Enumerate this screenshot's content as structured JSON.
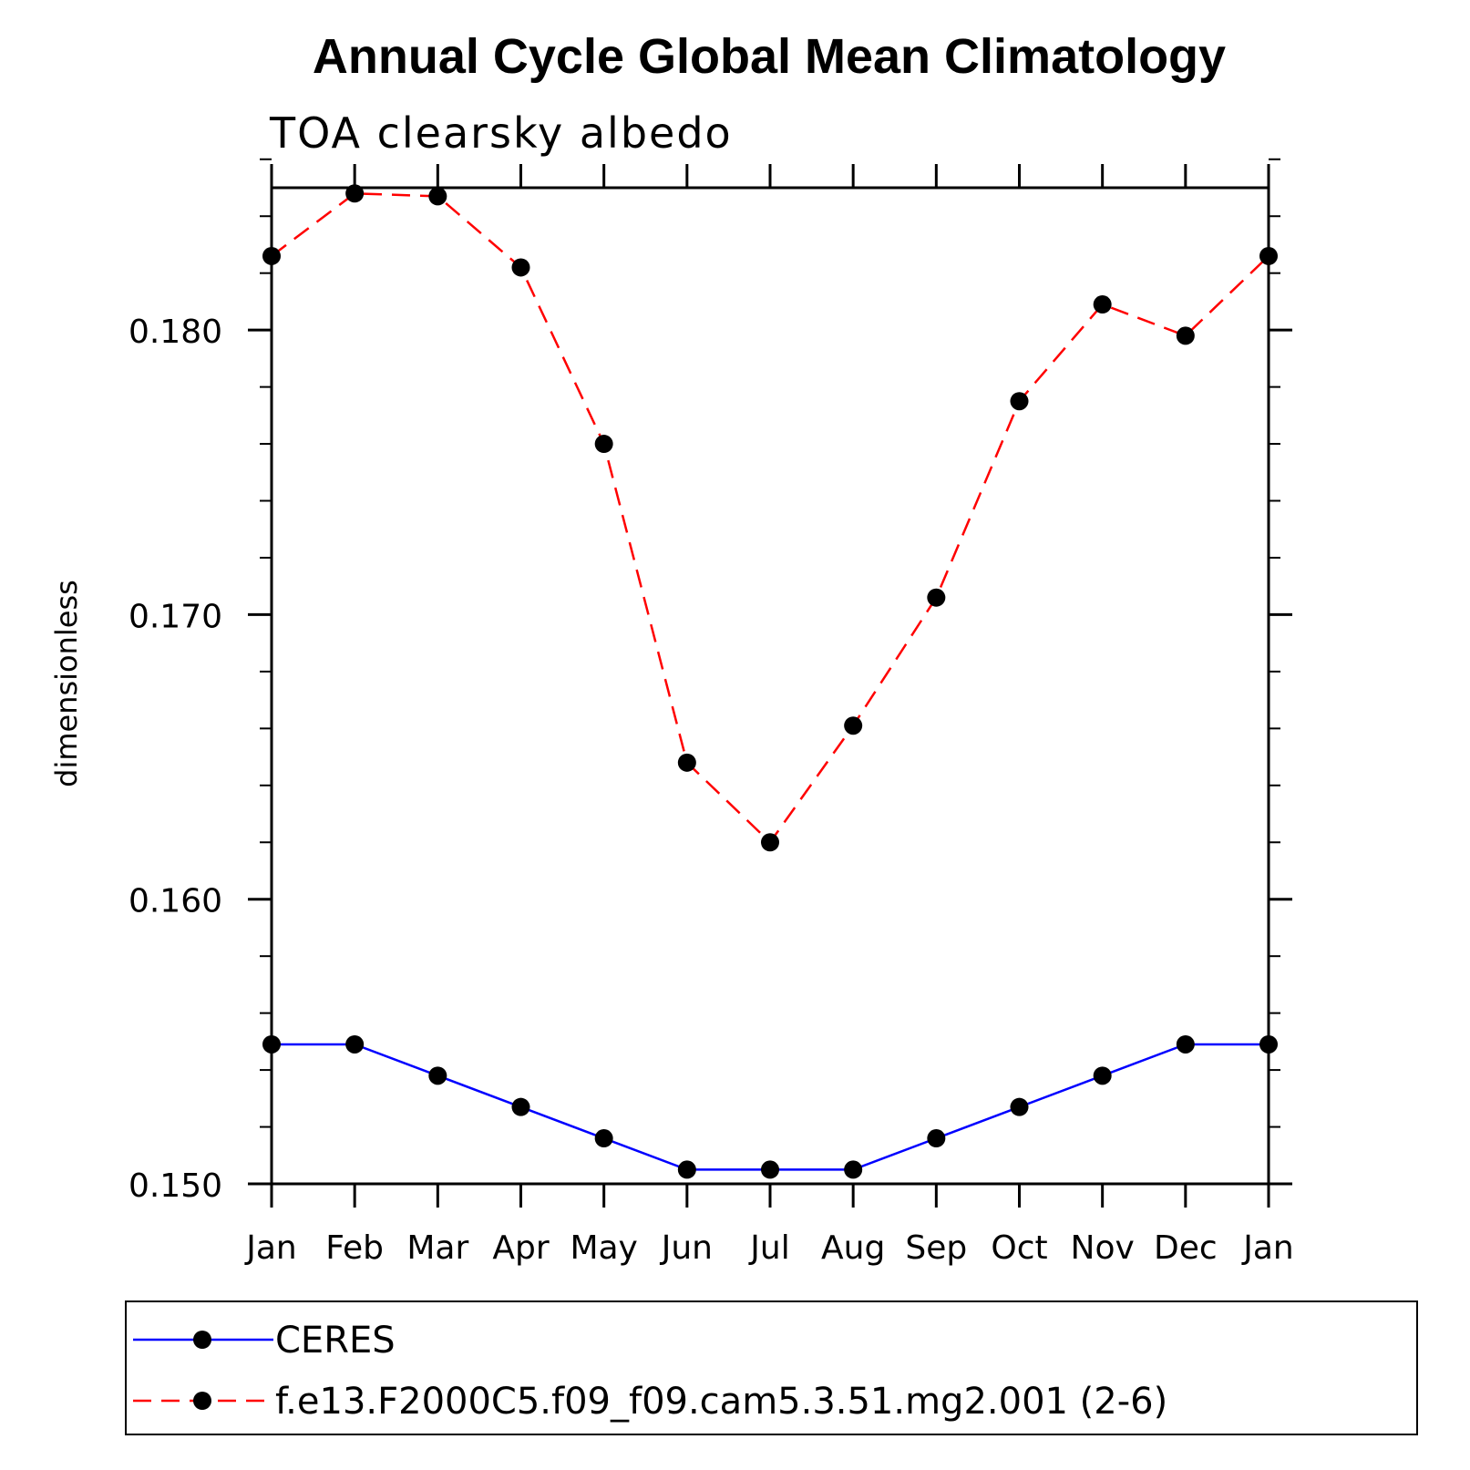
{
  "chart_data": {
    "type": "line",
    "title": "Annual Cycle Global Mean Climatology",
    "subtitle": "TOA clearsky albedo",
    "xlabel": "",
    "ylabel": "dimensionless",
    "categories": [
      "Jan",
      "Feb",
      "Mar",
      "Apr",
      "May",
      "Jun",
      "Jul",
      "Aug",
      "Sep",
      "Oct",
      "Nov",
      "Dec",
      "Jan"
    ],
    "ylim": [
      0.15,
      0.185
    ],
    "yticks": [
      0.15,
      0.16,
      0.17,
      0.18
    ],
    "ytick_labels": [
      "0.150",
      "0.160",
      "0.170",
      "0.180"
    ],
    "yminor_step": 0.002,
    "legend_position": "bottom",
    "series": [
      {
        "name": "CERES",
        "color": "#0000ff",
        "style": "solid",
        "values": [
          0.1549,
          0.1549,
          0.1538,
          0.1527,
          0.1516,
          0.1505,
          0.1505,
          0.1505,
          0.1516,
          0.1527,
          0.1538,
          0.1549,
          0.1549
        ]
      },
      {
        "name": "f.e13.F2000C5.f09_f09.cam5.3.51.mg2.001 (2-6)",
        "color": "#ff0000",
        "style": "dashed",
        "values": [
          0.1826,
          0.1848,
          0.1847,
          0.1822,
          0.176,
          0.1648,
          0.162,
          0.1661,
          0.1706,
          0.1775,
          0.1809,
          0.1798,
          0.1826
        ]
      }
    ],
    "marker_color": "#000000"
  }
}
